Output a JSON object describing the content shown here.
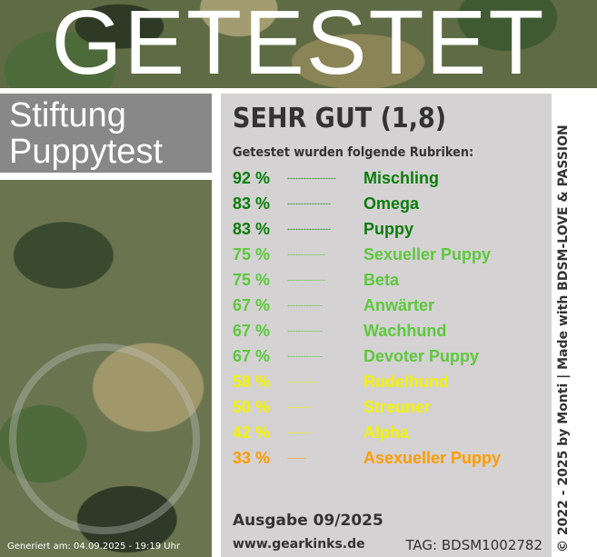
{
  "banner": {
    "title": "GETESTET"
  },
  "brand": {
    "line1": "Stiftung",
    "line2": "Puppytest"
  },
  "generated": "Generiert am: 04.09.2025 - 19:19 Uhr",
  "grade": "SEHR GUT (1,8)",
  "subtitle": "Getestet wurden folgende Rubriken:",
  "colors": {
    "dark_green": "#0b7d0b",
    "light_green": "#5ec83c",
    "yellow": "#f2f200",
    "orange": "#ff9c00",
    "panel": "#d4d2d3"
  },
  "results": [
    {
      "pct": "92 %",
      "name": "Mischling",
      "color": "#0b7d0b",
      "dots": "------------------"
    },
    {
      "pct": "83 %",
      "name": "Omega",
      "color": "#0b7d0b",
      "dots": "----------------"
    },
    {
      "pct": "83 %",
      "name": "Puppy",
      "color": "#0b7d0b",
      "dots": "----------------"
    },
    {
      "pct": "75 %",
      "name": "Sexueller Puppy",
      "color": "#5ec83c",
      "dots": "--------------"
    },
    {
      "pct": "75 %",
      "name": "Beta",
      "color": "#5ec83c",
      "dots": "--------------"
    },
    {
      "pct": "67 %",
      "name": "Anwärter",
      "color": "#5ec83c",
      "dots": "-------------"
    },
    {
      "pct": "67 %",
      "name": "Wachhund",
      "color": "#5ec83c",
      "dots": "-------------"
    },
    {
      "pct": "67 %",
      "name": "Devoter Puppy",
      "color": "#5ec83c",
      "dots": "-------------"
    },
    {
      "pct": "58 %",
      "name": "Rudelhund",
      "color": "#f2f200",
      "dots": "-----------"
    },
    {
      "pct": "50 %",
      "name": "Streuner",
      "color": "#f2f200",
      "dots": "---------"
    },
    {
      "pct": "42 %",
      "name": "Alpha",
      "color": "#f2f200",
      "dots": "---------"
    },
    {
      "pct": "33 %",
      "name": "Asexueller Puppy",
      "color": "#ff9c00",
      "dots": "-------"
    }
  ],
  "issue": "Ausgabe 09/2025",
  "url": "www.gearkinks.de",
  "tag": "TAG: BDSM1002782",
  "copyright": "© 2022 - 2025 by Monti | Made with BDSM-LOVE & PASSION"
}
